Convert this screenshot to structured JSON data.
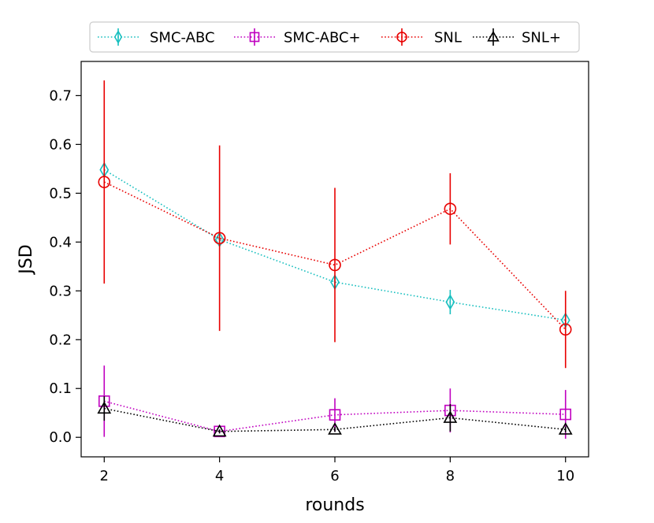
{
  "chart_data": {
    "type": "line",
    "title": "",
    "xlabel": "rounds",
    "ylabel": "JSD",
    "xlim": [
      1.6,
      10.4
    ],
    "ylim": [
      -0.04,
      0.77
    ],
    "xticks": [
      2,
      4,
      6,
      8,
      10
    ],
    "xtick_labels": [
      "2",
      "4",
      "6",
      "8",
      "10"
    ],
    "yticks": [
      0.0,
      0.1,
      0.2,
      0.3,
      0.4,
      0.5,
      0.6,
      0.7
    ],
    "ytick_labels": [
      "0.0",
      "0.1",
      "0.2",
      "0.3",
      "0.4",
      "0.5",
      "0.6",
      "0.7"
    ],
    "grid": false,
    "legend_position": "top",
    "series": [
      {
        "name": "SMC-ABC",
        "color": "#17bfbf",
        "marker": "diamond",
        "linestyle": "dotted",
        "x": [
          2,
          4,
          6,
          8,
          10
        ],
        "y": [
          0.548,
          0.405,
          0.318,
          0.277,
          0.24
        ],
        "err": [
          0.012,
          0.006,
          0.012,
          0.025,
          0.012
        ]
      },
      {
        "name": "SMC-ABC+",
        "color": "#c000c0",
        "marker": "square",
        "linestyle": "dotted",
        "x": [
          2,
          4,
          6,
          8,
          10
        ],
        "y": [
          0.074,
          0.012,
          0.046,
          0.055,
          0.047
        ],
        "err": [
          0.073,
          0.004,
          0.034,
          0.045,
          0.05
        ]
      },
      {
        "name": "SNL",
        "color": "#e80000",
        "marker": "circle",
        "linestyle": "dotted",
        "x": [
          2,
          4,
          6,
          8,
          10
        ],
        "y": [
          0.523,
          0.408,
          0.353,
          0.468,
          0.221
        ],
        "err": [
          0.208,
          0.19,
          0.158,
          0.073,
          0.079
        ]
      },
      {
        "name": "SNL+",
        "color": "#000000",
        "marker": "triangle",
        "linestyle": "dotted",
        "x": [
          2,
          4,
          6,
          8,
          10
        ],
        "y": [
          0.059,
          0.012,
          0.016,
          0.04,
          0.016
        ],
        "err": [
          0.025,
          0.004,
          0.005,
          0.028,
          0.006
        ]
      }
    ]
  }
}
